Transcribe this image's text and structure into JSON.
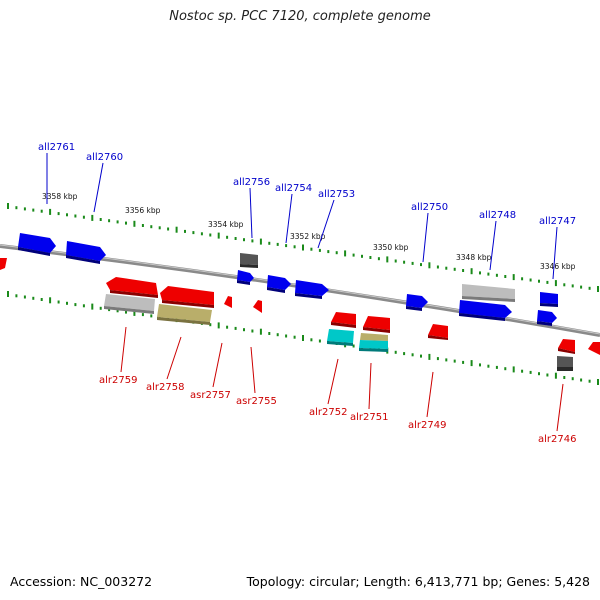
{
  "header": {
    "title": "Nostoc sp. PCC 7120, complete genome"
  },
  "footer": {
    "accession": "Accession: NC_003272",
    "summary": "Topology: circular; Length: 6,413,771 bp; Genes: 5,428"
  },
  "colors": {
    "backbone": "#808080",
    "minus_strand": "#0000ee",
    "plus_strand": "#ee0000",
    "grey_feature": "#bdbdbd",
    "dark_feature": "#555555",
    "olive_feature": "#b9ae6a",
    "cyan_feature": "#00c8c8",
    "tick": "#1a8a1a",
    "minus_label": "#0000cc",
    "plus_label": "#cc0000"
  },
  "scale": {
    "ticks": [
      "3358 kbp",
      "3356 kbp",
      "3354 kbp",
      "3352 kbp",
      "3350 kbp",
      "3348 kbp",
      "3346 kbp"
    ]
  },
  "genes_minus": [
    "all2761",
    "all2760",
    "all2756",
    "all2754",
    "all2753",
    "all2750",
    "all2748",
    "all2747"
  ],
  "genes_plus": [
    "alr2759",
    "alr2758",
    "asr2757",
    "asr2755",
    "alr2752",
    "alr2751",
    "alr2749",
    "alr2746"
  ]
}
